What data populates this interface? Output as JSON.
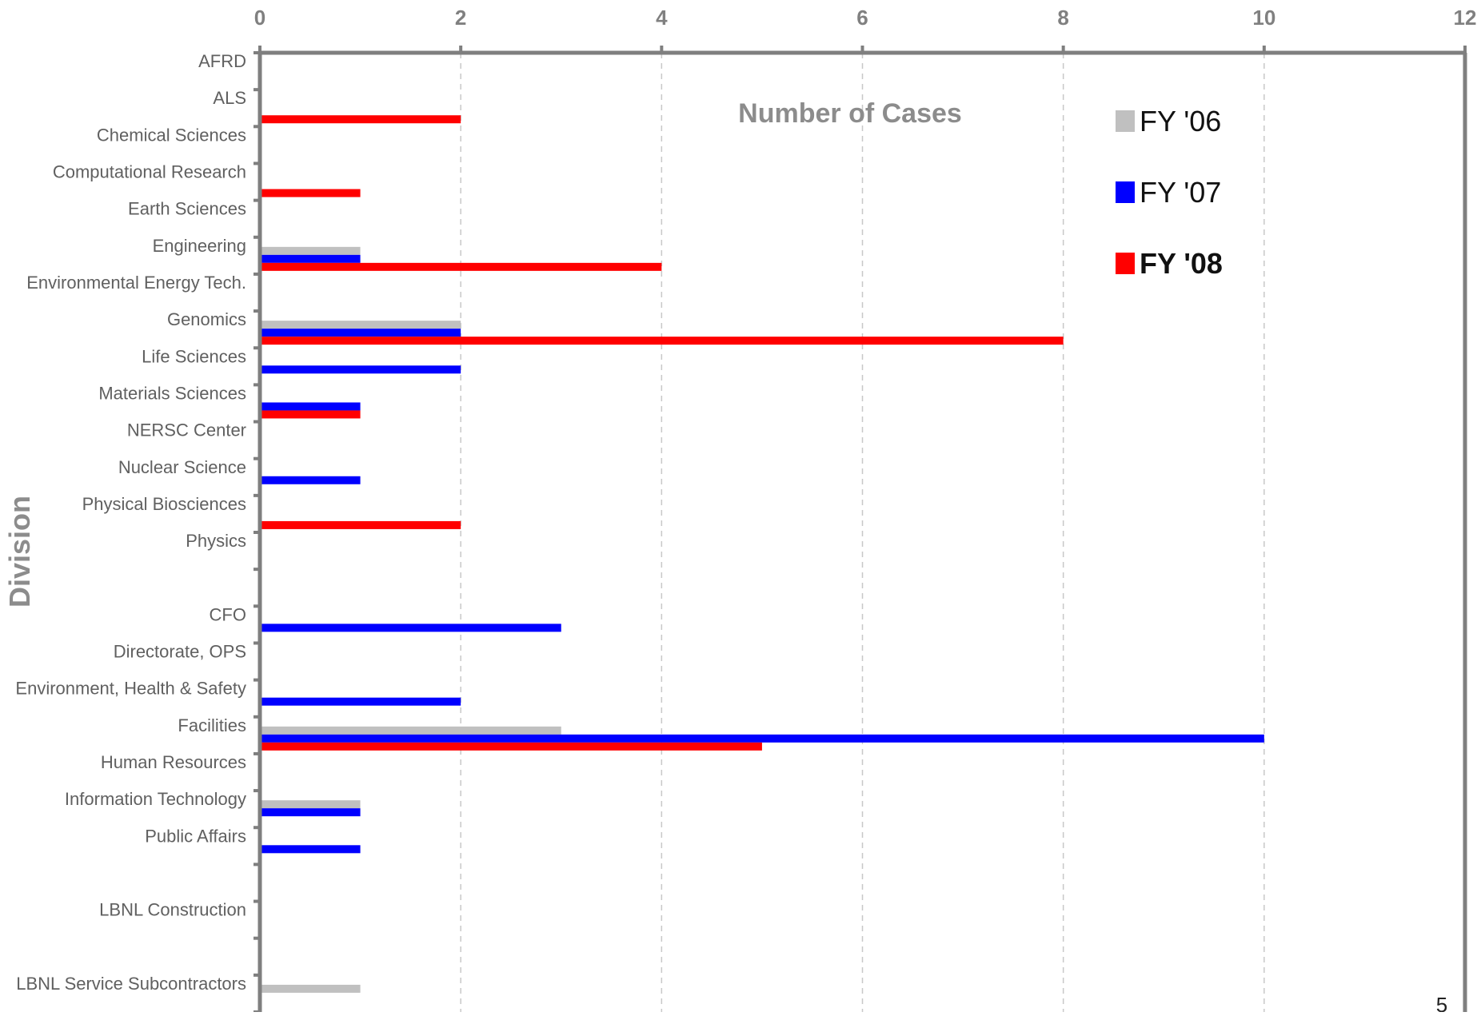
{
  "chart_data": {
    "type": "bar",
    "orientation": "horizontal",
    "xlabel": "Number of Cases",
    "ylabel": "Division",
    "xlim": [
      0,
      12
    ],
    "x_ticks": [
      "0",
      "2",
      "4",
      "6",
      "8",
      "10",
      "12"
    ],
    "grid": "vertical dashed",
    "legend_position": "top-right",
    "categories": [
      "AFRD",
      "ALS",
      "Chemical Sciences",
      "Computational Research",
      "Earth Sciences",
      "Engineering",
      "Environmental Energy Tech.",
      "Genomics",
      "Life Sciences",
      "Materials Sciences",
      "NERSC Center",
      "Nuclear Science",
      "Physical Biosciences",
      "Physics",
      "",
      "CFO",
      "Directorate, OPS",
      "Environment, Health & Safety",
      "Facilities",
      "Human Resources",
      "Information Technology",
      "Public Affairs",
      "",
      "LBNL Construction",
      "",
      "LBNL Service Subcontractors"
    ],
    "series": [
      {
        "name": "FY '06",
        "color": "#c0c0c0",
        "values": [
          0,
          0,
          0,
          0,
          0,
          1,
          0,
          2,
          0,
          0,
          0,
          0,
          0,
          0,
          0,
          0,
          0,
          0,
          3,
          0,
          1,
          0,
          0,
          0,
          0,
          1
        ]
      },
      {
        "name": "FY '07",
        "color": "#0000ff",
        "values": [
          0,
          0,
          0,
          0,
          0,
          1,
          0,
          2,
          2,
          1,
          0,
          1,
          0,
          0,
          0,
          3,
          0,
          2,
          10,
          0,
          1,
          1,
          0,
          0,
          0,
          0
        ]
      },
      {
        "name": "FY '08",
        "color": "#ff0000",
        "values": [
          0,
          2,
          0,
          1,
          0,
          4,
          0,
          8,
          0,
          1,
          0,
          0,
          2,
          0,
          0,
          0,
          0,
          0,
          5,
          0,
          0,
          0,
          0,
          0,
          0,
          0
        ]
      }
    ]
  },
  "page_number": "5"
}
